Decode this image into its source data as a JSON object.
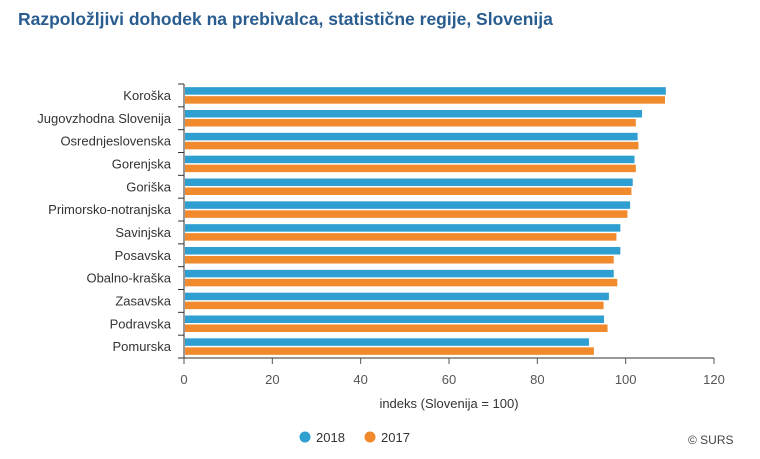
{
  "chart_data": {
    "type": "bar",
    "orientation": "horizontal",
    "title": "Razpoložljivi dohodek na prebivalca, statistične regije, Slovenija",
    "xlabel": "indeks (Slovenija = 100)",
    "ylabel": "",
    "xlim": [
      0,
      120
    ],
    "xticks": [
      0,
      20,
      40,
      60,
      80,
      100,
      120
    ],
    "grid": false,
    "legend_position": "bottom",
    "categories": [
      "Koroška",
      "Jugovzhodna Slovenija",
      "Osrednjeslovenska",
      "Gorenjska",
      "Goriška",
      "Primorsko-notranjska",
      "Savinjska",
      "Posavska",
      "Obalno-kraška",
      "Zasavska",
      "Podravska",
      "Pomurska"
    ],
    "series": [
      {
        "name": "2018",
        "color": "#2e9fd0",
        "values": [
          109.1,
          103.7,
          102.7,
          102.0,
          101.6,
          101.0,
          98.8,
          98.8,
          97.3,
          96.2,
          95.1,
          91.7
        ]
      },
      {
        "name": "2017",
        "color": "#f08a2c",
        "values": [
          108.9,
          102.3,
          102.9,
          102.3,
          101.3,
          100.4,
          97.9,
          97.3,
          98.1,
          95.0,
          95.9,
          92.8
        ]
      }
    ],
    "credit": "© SURS"
  }
}
